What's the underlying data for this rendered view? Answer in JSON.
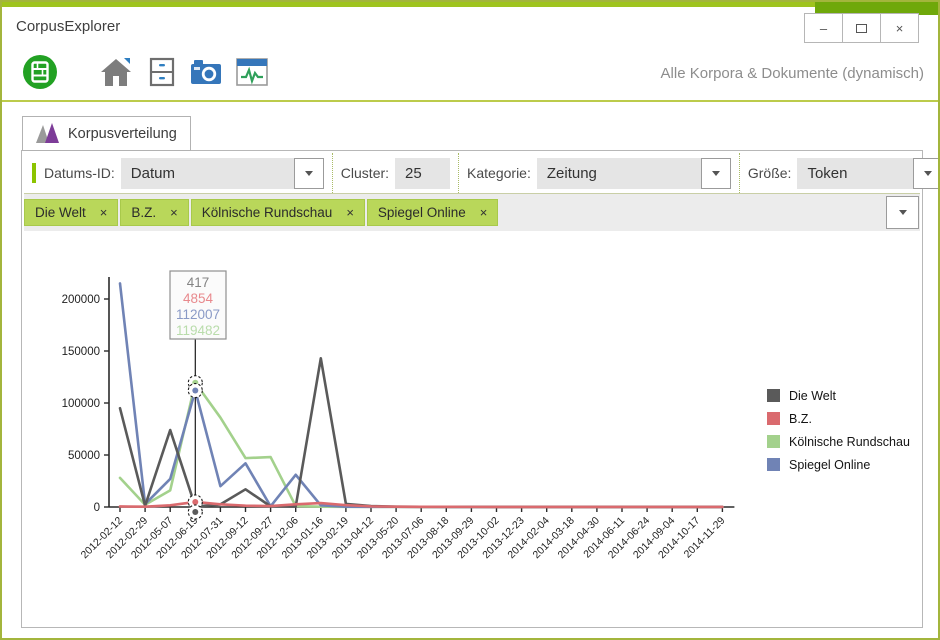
{
  "window": {
    "title": "CorpusExplorer",
    "controls": {
      "minimize_glyph": "–",
      "close_glyph": "×"
    }
  },
  "toolbar": {
    "icons": [
      "library-icon",
      "home-icon",
      "archive-icon",
      "camera-icon",
      "activity-icon"
    ],
    "scope_label": "Alle Korpora & Dokumente (dynamisch)"
  },
  "tab": {
    "label": "Korpusverteilung"
  },
  "filterbar": {
    "datum_label": "Datums-ID:",
    "datum_value": "Datum",
    "cluster_label": "Cluster:",
    "cluster_value": "25",
    "kategorie_label": "Kategorie:",
    "kategorie_value": "Zeitung",
    "groesse_label": "Größe:",
    "groesse_value": "Token"
  },
  "chips": [
    {
      "label": "Die Welt",
      "close_glyph": "×"
    },
    {
      "label": "B.Z.",
      "close_glyph": "×"
    },
    {
      "label": "Kölnische Rundschau",
      "close_glyph": "×"
    },
    {
      "label": "Spiegel Online",
      "close_glyph": "×"
    }
  ],
  "chart_data": {
    "type": "line",
    "title": "",
    "xlabel": "",
    "ylabel": "",
    "grid": false,
    "categories": [
      "2012-02-12",
      "2012-02-29",
      "2012-05-07",
      "2012-06-19",
      "2012-07-31",
      "2012-09-12",
      "2012-09-27",
      "2012-12-06",
      "2013-01-16",
      "2013-02-19",
      "2013-04-12",
      "2013-05-20",
      "2013-07-06",
      "2013-08-18",
      "2013-09-29",
      "2013-10-02",
      "2013-12-23",
      "2014-02-04",
      "2014-03-18",
      "2014-04-30",
      "2014-06-11",
      "2014-06-24",
      "2014-09-04",
      "2014-10-17",
      "2014-11-29"
    ],
    "y_ticks": [
      0,
      50000,
      100000,
      150000,
      200000
    ],
    "ylim": [
      0,
      225000
    ],
    "series": [
      {
        "name": "Die Welt",
        "color": "#5a5a5a",
        "values": [
          95000,
          1200,
          74000,
          417,
          2500,
          17000,
          600,
          400,
          143000,
          3000,
          900,
          300,
          200,
          150,
          120,
          100,
          100,
          100,
          100,
          100,
          100,
          100,
          100,
          100,
          100
        ]
      },
      {
        "name": "B.Z.",
        "color": "#da6a6e",
        "values": [
          500,
          300,
          1600,
          4854,
          2600,
          1300,
          900,
          2600,
          3800,
          1800,
          600,
          300,
          200,
          150,
          120,
          100,
          100,
          100,
          100,
          100,
          100,
          100,
          100,
          100,
          100
        ]
      },
      {
        "name": "Kölnische Rundschau",
        "color": "#a3d18c",
        "values": [
          28000,
          2200,
          16000,
          119482,
          86000,
          47000,
          48000,
          900,
          300,
          200,
          150,
          120,
          100,
          100,
          100,
          100,
          100,
          100,
          100,
          100,
          100,
          100,
          100,
          100,
          100
        ]
      },
      {
        "name": "Spiegel Online",
        "color": "#7083b5",
        "values": [
          215000,
          2800,
          27000,
          112007,
          20000,
          42000,
          700,
          31000,
          1600,
          300,
          200,
          150,
          120,
          100,
          100,
          100,
          100,
          100,
          100,
          100,
          100,
          100,
          100,
          100,
          100
        ]
      }
    ],
    "draw_order": [
      2,
      3,
      0,
      1
    ],
    "legend": {
      "position": "right",
      "items": [
        "Die Welt",
        "B.Z.",
        "Kölnische Rundschau",
        "Spiegel Online"
      ]
    },
    "tooltip": {
      "category": "2012-06-19",
      "index": 3,
      "entries": [
        {
          "series": "Die Welt",
          "value": "417",
          "color": "#848484"
        },
        {
          "series": "B.Z.",
          "value": "4854",
          "color": "#e8898d"
        },
        {
          "series": "Spiegel Online",
          "value": "112007",
          "color": "#8a9ac6"
        },
        {
          "series": "Kölnische Rundschau",
          "value": "119482",
          "color": "#b9dcab"
        }
      ]
    }
  }
}
